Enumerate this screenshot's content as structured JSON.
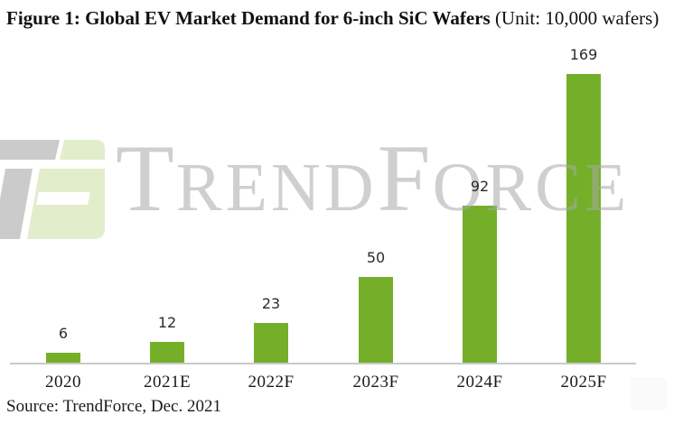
{
  "figure": {
    "title_bold": "Figure 1: Global EV Market Demand for 6-inch SiC Wafers",
    "title_unit": " (Unit: 10,000 wafers)",
    "source": "Source: TrendForce, Dec. 2021"
  },
  "watermark": {
    "brand": "TrendForce",
    "segments": [
      "T",
      "REND",
      "F",
      "ORCE"
    ],
    "logo_gray": "rgba(140,140,140,0.45)",
    "logo_green": "rgba(200,220,158,0.52)",
    "text_gray": "#d5d5d5"
  },
  "chart_data": {
    "type": "bar",
    "title": "Figure 1: Global EV Market Demand for 6-inch SiC Wafers",
    "unit_label": "(Unit: 10,000 wafers)",
    "categories": [
      "2020",
      "2021E",
      "2022F",
      "2023F",
      "2024F",
      "2025F"
    ],
    "values": [
      6,
      12,
      23,
      50,
      92,
      169
    ],
    "xlabel": "",
    "ylabel": "",
    "ylim": [
      0,
      175
    ],
    "grid": false,
    "legend": false,
    "value_labels_shown": true,
    "bar_color": "#75AF2A",
    "value_label_color": "#2b2b2b",
    "axis_line_color": "#c9c9c9",
    "source": "Source: TrendForce, Dec. 2021"
  }
}
